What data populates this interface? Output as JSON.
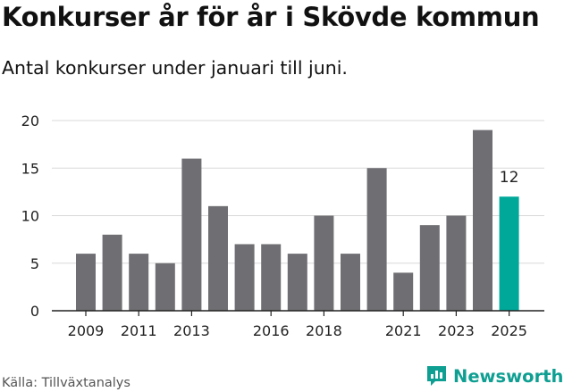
{
  "header": {
    "title": "Konkurser år för år i Skövde kommun",
    "subtitle": "Antal konkurser under januari till juni."
  },
  "footer": {
    "source": "Källa: Tillväxtanalys",
    "brand": "Newsworthy",
    "brand_icon": "newsworthy-logo-icon",
    "brand_color": "#0f9f92"
  },
  "chart_data": {
    "type": "bar",
    "categories": [
      "2009",
      "2010",
      "2011",
      "2012",
      "2013",
      "2014",
      "2015",
      "2016",
      "2017",
      "2018",
      "2019",
      "2020",
      "2021",
      "2022",
      "2023",
      "2024",
      "2025"
    ],
    "values": [
      6,
      8,
      6,
      5,
      16,
      11,
      7,
      7,
      6,
      10,
      6,
      15,
      4,
      9,
      10,
      19,
      12
    ],
    "x_tick_labels": [
      "2009",
      "2011",
      "2013",
      "2016",
      "2018",
      "2021",
      "2023",
      "2025"
    ],
    "y_ticks": [
      0,
      5,
      10,
      15,
      20
    ],
    "ylim": [
      0,
      20
    ],
    "grid": true,
    "bar_color": "#6f6e72",
    "highlight": {
      "category": "2025",
      "color": "#00a89a",
      "label": "12"
    }
  }
}
